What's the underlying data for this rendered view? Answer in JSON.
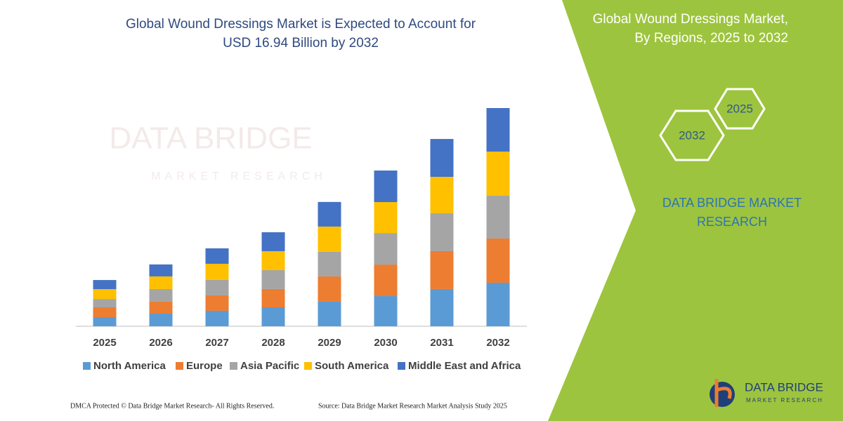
{
  "chart_data": {
    "type": "stacked_bar",
    "title": [
      "Global Wound Dressings Market is Expected to Account for",
      "USD 16.94 Billion by 2032"
    ],
    "categories": [
      "2025",
      "2026",
      "2027",
      "2028",
      "2029",
      "2030",
      "2031",
      "2032"
    ],
    "series": [
      {
        "name": "North America",
        "color": "#5b9bd5",
        "values": [
          0.71,
          0.98,
          1.2,
          1.47,
          1.91,
          2.34,
          2.89,
          3.38
        ]
      },
      {
        "name": "Europe",
        "color": "#ed7d31",
        "values": [
          0.76,
          0.93,
          1.2,
          1.42,
          1.96,
          2.45,
          2.94,
          3.43
        ]
      },
      {
        "name": "Asia Pacific",
        "color": "#a5a5a5",
        "values": [
          0.65,
          0.98,
          1.2,
          1.47,
          1.91,
          2.45,
          2.94,
          3.32
        ]
      },
      {
        "name": "South America",
        "color": "#ffc000",
        "values": [
          0.76,
          0.98,
          1.25,
          1.47,
          1.96,
          2.4,
          2.83,
          3.43
        ]
      },
      {
        "name": "Middle East and Africa",
        "color": "#4472c4",
        "values": [
          0.71,
          0.93,
          1.2,
          1.47,
          1.91,
          2.45,
          2.94,
          3.38
        ]
      }
    ],
    "legend": "bottom"
  },
  "panel": {
    "title": [
      "Global Wound Dressings Market,",
      "By Regions, 2025 to 2032"
    ],
    "hexagons": [
      "2025",
      "2032"
    ],
    "brand": [
      "DATA BRIDGE MARKET",
      "RESEARCH"
    ]
  },
  "watermark": [
    "DATA BRIDGE",
    "MARKET RESEARCH"
  ],
  "logo": [
    "DATA BRIDGE",
    "MARKET RESEARCH"
  ],
  "footer": {
    "copyright": "DMCA Protected © Data Bridge Market Research-  All Rights Reserved.",
    "source": "Source: Data Bridge Market Research  Market Analysis Study 2025"
  }
}
